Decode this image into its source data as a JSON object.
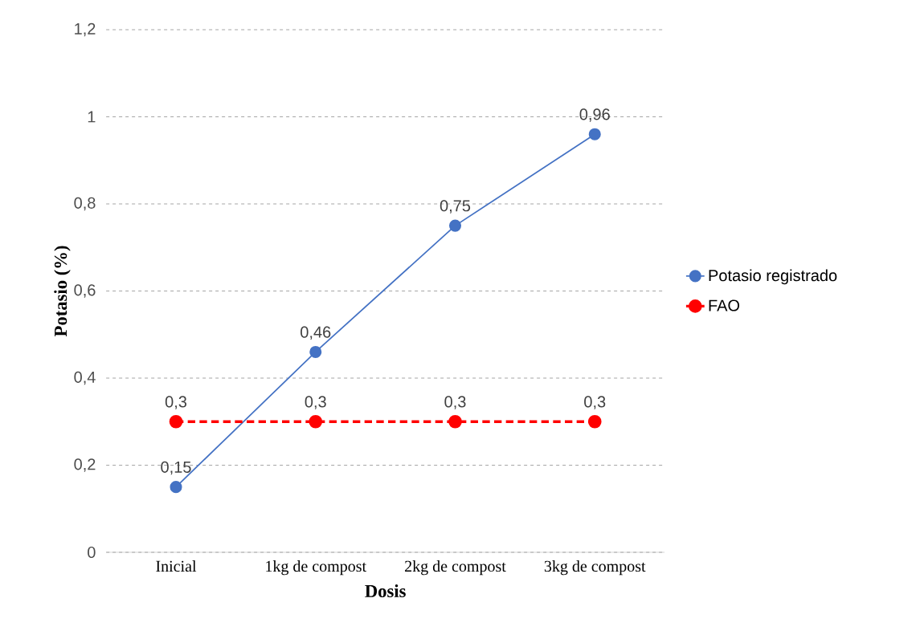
{
  "chart_data": {
    "type": "line",
    "xlabel": "Dosis",
    "ylabel": "Potasio (%)",
    "categories": [
      "Inicial",
      "1kg de compost",
      "2kg de compost",
      "3kg de compost"
    ],
    "series": [
      {
        "name": "Potasio registrado",
        "color": "#4472c4",
        "line_style": "solid",
        "values": [
          0.15,
          0.46,
          0.75,
          0.96
        ],
        "value_labels": [
          "0,15",
          "0,46",
          "0,75",
          "0,96"
        ]
      },
      {
        "name": "FAO",
        "color": "#ff0000",
        "line_style": "dashed",
        "values": [
          0.3,
          0.3,
          0.3,
          0.3
        ],
        "value_labels": [
          "0,3",
          "0,3",
          "0,3",
          "0,3"
        ]
      }
    ],
    "ylim": [
      0,
      1.2
    ],
    "yticks": [
      0,
      {
        "value": 0.2,
        "label": "0,2"
      },
      {
        "value": 0.4,
        "label": "0,4"
      },
      {
        "value": 0.6,
        "label": "0,6"
      },
      {
        "value": 0.8,
        "label": "0,8"
      },
      1,
      {
        "value": 1.2,
        "label": "1,2"
      }
    ],
    "grid": "y",
    "legend": "right",
    "marker": "circle"
  }
}
